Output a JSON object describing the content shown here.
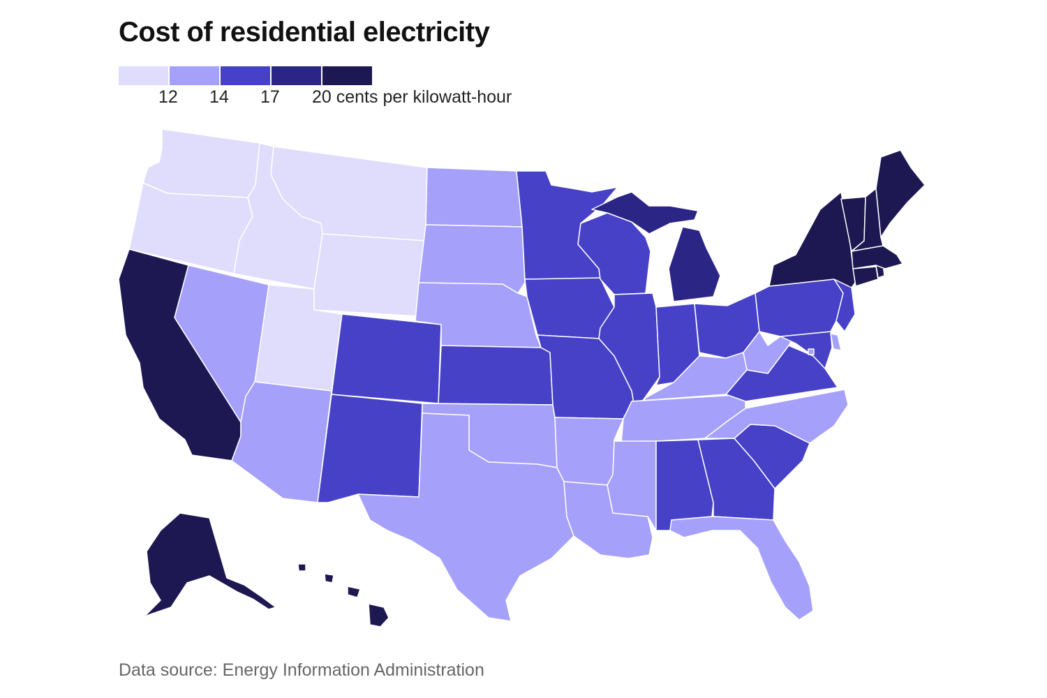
{
  "title": "Cost of residential electricity",
  "legend": {
    "tick_labels": [
      "12",
      "14",
      "17",
      "20 cents per kilowatt-hour"
    ]
  },
  "colors": {
    "tier1": "#e0dcfc",
    "tier2": "#a5a0fa",
    "tier3": "#4641c6",
    "tier4": "#2b2585",
    "tier5": "#1d1851"
  },
  "source": "Data source: Energy Information Administration",
  "chart_data": {
    "type": "choropleth",
    "bins": [
      "<12",
      "12–14",
      "14–17",
      "17–20",
      ">20"
    ],
    "units": "cents per kilowatt-hour",
    "states": {
      "WA": 1,
      "OR": 1,
      "ID": 1,
      "MT": 1,
      "WY": 1,
      "UT": 1,
      "CA": 5,
      "NV": 2,
      "AZ": 2,
      "CO": 3,
      "NM": 3,
      "ND": 2,
      "SD": 2,
      "NE": 2,
      "KS": 3,
      "OK": 2,
      "TX": 2,
      "MN": 3,
      "IA": 3,
      "MO": 3,
      "AR": 2,
      "LA": 2,
      "WI": 3,
      "IL": 3,
      "MI": 4,
      "IN": 3,
      "OH": 3,
      "KY": 2,
      "TN": 2,
      "MS": 2,
      "AL": 3,
      "GA": 3,
      "FL": 2,
      "SC": 3,
      "NC": 2,
      "VA": 3,
      "WV": 2,
      "MD": 3,
      "DE": 2,
      "DC": 2,
      "PA": 3,
      "NJ": 3,
      "NY": 5,
      "CT": 5,
      "RI": 5,
      "MA": 5,
      "VT": 5,
      "NH": 5,
      "ME": 5,
      "AK": 5,
      "HI": 5
    }
  }
}
